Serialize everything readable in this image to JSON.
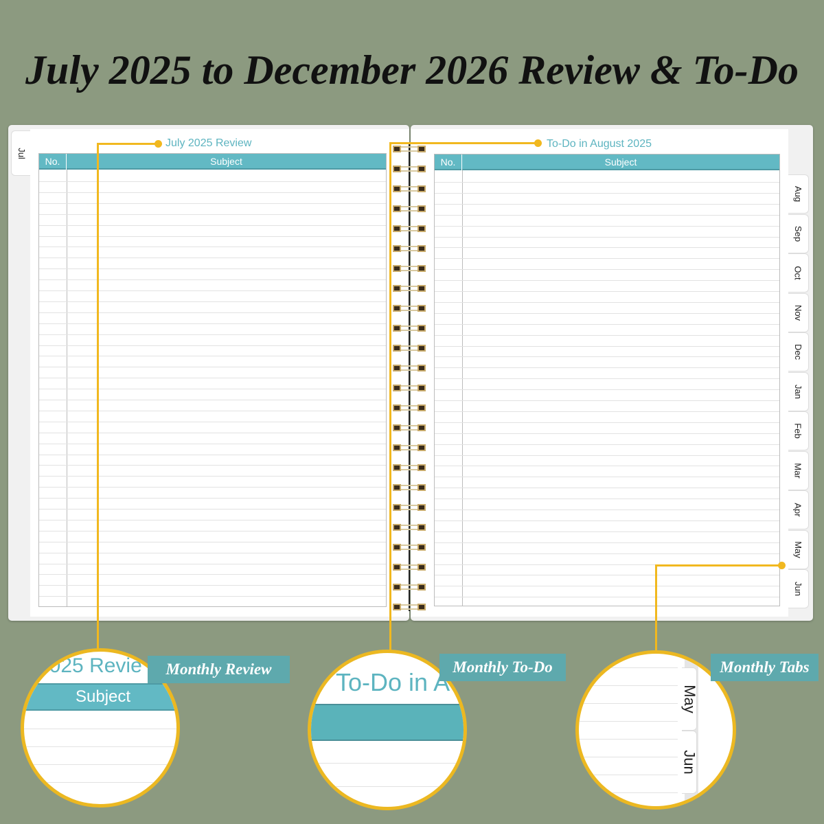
{
  "title": "July 2025 to December 2026 Review & To-Do",
  "left_page": {
    "tab": "Jul",
    "title": "July 2025 Review",
    "col_no": "No.",
    "col_subject": "Subject"
  },
  "right_page": {
    "title": "To-Do in August 2025",
    "col_no": "No.",
    "col_subject": "Subject",
    "tabs": [
      "Aug",
      "Sep",
      "Oct",
      "Nov",
      "Dec",
      "Jan",
      "Feb",
      "Mar",
      "Apr",
      "May",
      "Jun"
    ]
  },
  "callouts": {
    "review": {
      "label": "Monthly Review",
      "zoom_title": "2025 Revie",
      "zoom_header": "Subject"
    },
    "todo": {
      "label": "Monthly To-Do",
      "zoom_title": "To-Do in A"
    },
    "tabs": {
      "label": "Monthly Tabs",
      "zoom_tabs": [
        "May",
        "Jun"
      ]
    }
  },
  "colors": {
    "background": "#8c9a80",
    "accent": "#62b9c4",
    "callout_line": "#f1b81f"
  }
}
